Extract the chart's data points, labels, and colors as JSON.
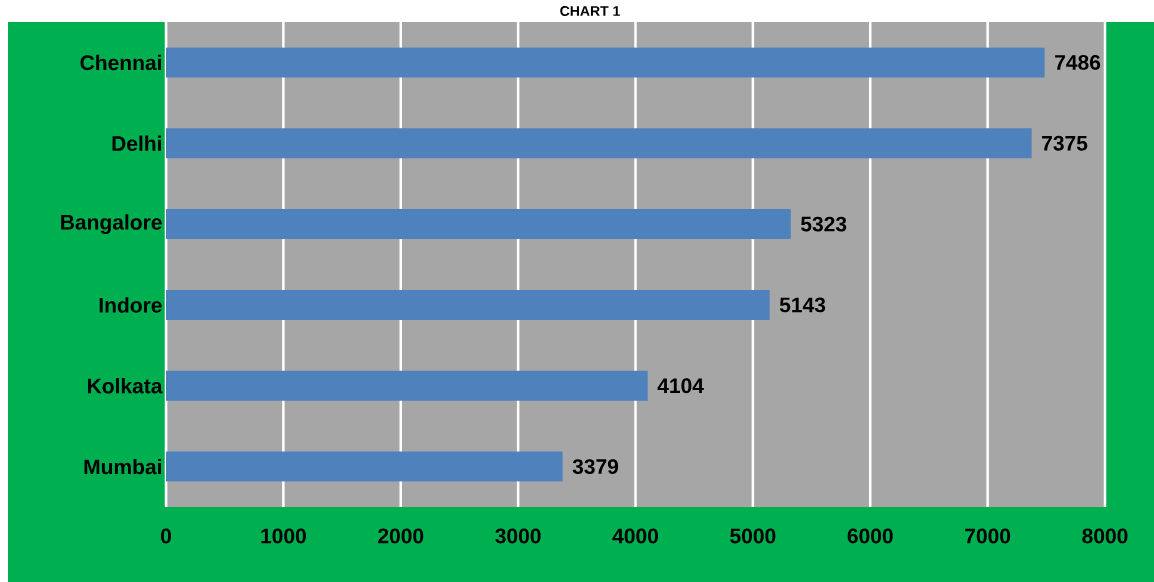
{
  "chart_data": {
    "type": "bar",
    "orientation": "horizontal",
    "title": "CHART 1",
    "categories": [
      "Chennai",
      "Delhi",
      "Bangalore",
      "Indore",
      "Kolkata",
      "Mumbai"
    ],
    "values": [
      7486,
      7375,
      5323,
      5143,
      4104,
      3379
    ],
    "color": "#4f81bd",
    "xlim": [
      0,
      8000
    ],
    "xticks": [
      0,
      1000,
      2000,
      3000,
      4000,
      5000,
      6000,
      7000,
      8000
    ],
    "grid": "x",
    "data_labels": true
  }
}
